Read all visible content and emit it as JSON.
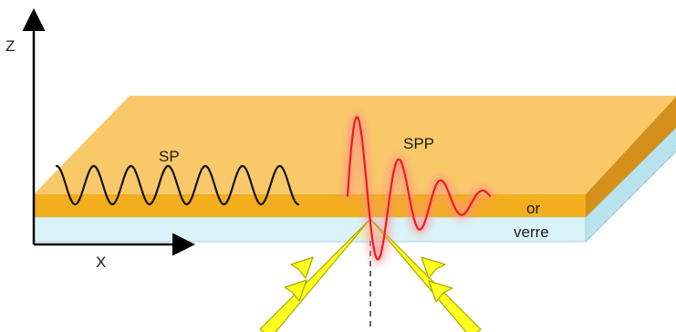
{
  "axes": {
    "z_label": "Z",
    "x_label": "X"
  },
  "labels": {
    "sp": "SP",
    "spp": "SPP",
    "gold_layer": "or",
    "glass_layer": "verre"
  },
  "colors": {
    "gold_top": "#f9c969",
    "gold_front": "#f3ae1e",
    "gold_side": "#d4901a",
    "glass_front": "#d9f3f8",
    "glass_side": "#b9e3ec",
    "spp_wave": "#ee1c1c",
    "spp_glow": "#ff8c8c",
    "sp_wave": "#111111",
    "light_beam": "#ffff22",
    "light_beam_outline": "#a8a800"
  }
}
